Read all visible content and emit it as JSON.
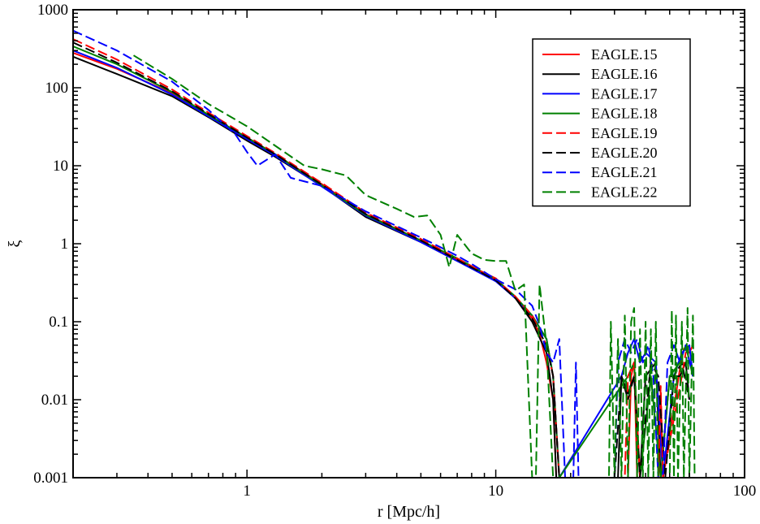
{
  "chart_data": {
    "type": "line",
    "title": "",
    "xlabel": "r [Mpc/h]",
    "ylabel": "ξ",
    "xscale": "log",
    "yscale": "log",
    "xlim": [
      0.2,
      100
    ],
    "ylim": [
      0.001,
      1000
    ],
    "x_ticks": [
      {
        "value": 1,
        "label": "1"
      },
      {
        "value": 10,
        "label": "10"
      },
      {
        "value": 100,
        "label": "100"
      }
    ],
    "y_ticks": [
      {
        "value": 0.001,
        "label": "0.001"
      },
      {
        "value": 0.01,
        "label": "0.01"
      },
      {
        "value": 0.1,
        "label": "0.1"
      },
      {
        "value": 1,
        "label": "1"
      },
      {
        "value": 10,
        "label": "10"
      },
      {
        "value": 100,
        "label": "100"
      },
      {
        "value": 1000,
        "label": "1000"
      }
    ],
    "grid": false,
    "legend_position": "top-right",
    "series": [
      {
        "name": "EAGLE.15",
        "color": "#ff0000",
        "dash": "solid",
        "points": [
          [
            0.2,
            280
          ],
          [
            0.3,
            175
          ],
          [
            0.5,
            85
          ],
          [
            0.7,
            44
          ],
          [
            1.0,
            23
          ],
          [
            1.3,
            14
          ],
          [
            2.0,
            5.8
          ],
          [
            3.0,
            2.4
          ],
          [
            5.0,
            1.1
          ],
          [
            7.0,
            0.62
          ],
          [
            10.0,
            0.36
          ],
          [
            12.0,
            0.2
          ],
          [
            14.0,
            0.11
          ],
          [
            15.0,
            0.07
          ],
          [
            16.0,
            0.03
          ],
          [
            17.0,
            0.01
          ],
          [
            17.5,
            0.001
          ],
          [
            34.0,
            0.001
          ],
          [
            35.0,
            0.02
          ],
          [
            36.0,
            0.03
          ],
          [
            37.0,
            0.001
          ],
          [
            45.0,
            0.001
          ],
          [
            46.0,
            0.012
          ],
          [
            47.0,
            0.001
          ],
          [
            55.0,
            0.025
          ],
          [
            57.0,
            0.045
          ],
          [
            60.0,
            0.04
          ],
          [
            62.0,
            0.05
          ]
        ]
      },
      {
        "name": "EAGLE.16",
        "color": "#000000",
        "dash": "solid",
        "points": [
          [
            0.2,
            250
          ],
          [
            0.3,
            150
          ],
          [
            0.5,
            78
          ],
          [
            0.7,
            42
          ],
          [
            1.0,
            21
          ],
          [
            1.3,
            13
          ],
          [
            2.0,
            5.5
          ],
          [
            3.0,
            2.2
          ],
          [
            5.0,
            1.05
          ],
          [
            7.0,
            0.6
          ],
          [
            10.0,
            0.34
          ],
          [
            12.0,
            0.2
          ],
          [
            14.0,
            0.1
          ],
          [
            16.0,
            0.04
          ],
          [
            17.0,
            0.01
          ],
          [
            17.5,
            0.001
          ],
          [
            31.0,
            0.001
          ],
          [
            32.0,
            0.02
          ],
          [
            34.0,
            0.012
          ],
          [
            36.0,
            0.02
          ],
          [
            38.0,
            0.001
          ],
          [
            40.0,
            0.02
          ],
          [
            44.0,
            0.03
          ],
          [
            46.0,
            0.001
          ],
          [
            50.0,
            0.02
          ],
          [
            55.0,
            0.02
          ],
          [
            58.0,
            0.03
          ],
          [
            60.0,
            0.01
          ]
        ]
      },
      {
        "name": "EAGLE.17",
        "color": "#0000ff",
        "dash": "solid",
        "points": [
          [
            0.2,
            300
          ],
          [
            0.3,
            180
          ],
          [
            0.5,
            82
          ],
          [
            0.7,
            43
          ],
          [
            1.0,
            22
          ],
          [
            1.3,
            13.5
          ],
          [
            2.0,
            5.4
          ],
          [
            3.0,
            2.3
          ],
          [
            5.0,
            1.05
          ],
          [
            7.0,
            0.6
          ],
          [
            10.0,
            0.33
          ],
          [
            12.0,
            0.2
          ],
          [
            14.0,
            0.12
          ],
          [
            16.0,
            0.06
          ],
          [
            17.0,
            0.02
          ],
          [
            18.0,
            0.001
          ],
          [
            32.0,
            0.02
          ],
          [
            34.0,
            0.04
          ],
          [
            36.0,
            0.06
          ],
          [
            38.0,
            0.03
          ],
          [
            40.0,
            0.04
          ],
          [
            44.0,
            0.03
          ],
          [
            47.0,
            0.001
          ],
          [
            52.0,
            0.02
          ],
          [
            56.0,
            0.04
          ],
          [
            60.0,
            0.05
          ],
          [
            62.0,
            0.02
          ]
        ]
      },
      {
        "name": "EAGLE.18",
        "color": "#008000",
        "dash": "solid",
        "points": [
          [
            0.2,
            340
          ],
          [
            0.3,
            200
          ],
          [
            0.5,
            88
          ],
          [
            0.7,
            45
          ],
          [
            1.0,
            23
          ],
          [
            1.3,
            14
          ],
          [
            2.0,
            5.6
          ],
          [
            3.0,
            2.35
          ],
          [
            5.0,
            1.1
          ],
          [
            7.0,
            0.65
          ],
          [
            10.0,
            0.35
          ],
          [
            12.0,
            0.21
          ],
          [
            14.0,
            0.12
          ],
          [
            16.0,
            0.06
          ],
          [
            17.0,
            0.02
          ],
          [
            18.0,
            0.001
          ],
          [
            34.0,
            0.02
          ],
          [
            36.0,
            0.03
          ],
          [
            38.0,
            0.001
          ],
          [
            42.0,
            0.02
          ],
          [
            46.0,
            0.001
          ],
          [
            50.0,
            0.02
          ],
          [
            55.0,
            0.03
          ],
          [
            58.0,
            0.05
          ],
          [
            62.0,
            0.02
          ]
        ]
      },
      {
        "name": "EAGLE.19",
        "color": "#ff0000",
        "dash": "dashed",
        "points": [
          [
            0.2,
            420
          ],
          [
            0.3,
            230
          ],
          [
            0.5,
            95
          ],
          [
            0.7,
            48
          ],
          [
            1.0,
            24
          ],
          [
            1.3,
            14.5
          ],
          [
            2.0,
            6.0
          ],
          [
            3.0,
            2.5
          ],
          [
            5.0,
            1.15
          ],
          [
            7.0,
            0.65
          ],
          [
            10.0,
            0.35
          ],
          [
            12.0,
            0.21
          ],
          [
            14.0,
            0.12
          ],
          [
            16.0,
            0.05
          ],
          [
            17.0,
            0.02
          ],
          [
            18.0,
            0.001
          ],
          [
            33.0,
            0.001
          ],
          [
            34.0,
            0.02
          ],
          [
            36.0,
            0.03
          ],
          [
            38.0,
            0.001
          ],
          [
            45.0,
            0.001
          ],
          [
            46.0,
            0.015
          ],
          [
            47.0,
            0.001
          ],
          [
            56.0,
            0.02
          ],
          [
            58.0,
            0.04
          ],
          [
            62.0,
            0.05
          ]
        ]
      },
      {
        "name": "EAGLE.20",
        "color": "#000000",
        "dash": "dashed",
        "points": [
          [
            0.2,
            380
          ],
          [
            0.3,
            210
          ],
          [
            0.5,
            90
          ],
          [
            0.7,
            46
          ],
          [
            1.0,
            23
          ],
          [
            1.3,
            14
          ],
          [
            2.0,
            5.7
          ],
          [
            3.0,
            2.4
          ],
          [
            5.0,
            1.1
          ],
          [
            7.0,
            0.62
          ],
          [
            10.0,
            0.34
          ],
          [
            12.0,
            0.2
          ],
          [
            14.0,
            0.11
          ],
          [
            16.0,
            0.05
          ],
          [
            17.0,
            0.02
          ],
          [
            18.0,
            0.001
          ],
          [
            30.0,
            0.001
          ],
          [
            32.0,
            0.02
          ],
          [
            34.0,
            0.01
          ],
          [
            36.0,
            0.02
          ],
          [
            38.0,
            0.001
          ],
          [
            42.0,
            0.03
          ],
          [
            45.0,
            0.02
          ],
          [
            48.0,
            0.001
          ],
          [
            52.0,
            0.02
          ],
          [
            56.0,
            0.03
          ],
          [
            60.0,
            0.01
          ]
        ]
      },
      {
        "name": "EAGLE.21",
        "color": "#0000ff",
        "dash": "dashed",
        "points": [
          [
            0.2,
            540
          ],
          [
            0.3,
            300
          ],
          [
            0.5,
            120
          ],
          [
            0.7,
            52
          ],
          [
            0.9,
            25
          ],
          [
            1.0,
            15
          ],
          [
            1.1,
            10
          ],
          [
            1.3,
            14
          ],
          [
            1.5,
            7
          ],
          [
            2.0,
            5.5
          ],
          [
            3.0,
            2.6
          ],
          [
            5.0,
            1.2
          ],
          [
            6.0,
            0.9
          ],
          [
            7.0,
            0.7
          ],
          [
            8.0,
            0.55
          ],
          [
            10.0,
            0.35
          ],
          [
            12.0,
            0.26
          ],
          [
            14.0,
            0.16
          ],
          [
            15.0,
            0.09
          ],
          [
            16.0,
            0.04
          ],
          [
            17.0,
            0.03
          ],
          [
            18.0,
            0.06
          ],
          [
            19.0,
            0.001
          ],
          [
            20.5,
            0.001
          ],
          [
            21.0,
            0.03
          ],
          [
            21.5,
            0.001
          ],
          [
            30.0,
            0.001
          ],
          [
            31.0,
            0.03
          ],
          [
            33.0,
            0.06
          ],
          [
            35.0,
            0.04
          ],
          [
            37.0,
            0.06
          ],
          [
            39.0,
            0.03
          ],
          [
            41.0,
            0.05
          ],
          [
            43.0,
            0.02
          ],
          [
            45.0,
            0.001
          ],
          [
            47.0,
            0.001
          ],
          [
            49.0,
            0.03
          ],
          [
            52.0,
            0.05
          ],
          [
            55.0,
            0.03
          ],
          [
            58.0,
            0.05
          ],
          [
            62.0,
            0.02
          ]
        ]
      },
      {
        "name": "EAGLE.22",
        "color": "#008000",
        "dash": "dashed",
        "points": [
          [
            0.35,
            260
          ],
          [
            0.5,
            130
          ],
          [
            0.7,
            62
          ],
          [
            1.0,
            32
          ],
          [
            1.3,
            18
          ],
          [
            1.7,
            10
          ],
          [
            2.0,
            9
          ],
          [
            2.5,
            7.5
          ],
          [
            3.0,
            4.2
          ],
          [
            4.0,
            2.8
          ],
          [
            4.7,
            2.2
          ],
          [
            5.3,
            2.3
          ],
          [
            6.0,
            1.3
          ],
          [
            6.5,
            0.5
          ],
          [
            7.0,
            1.3
          ],
          [
            8.0,
            0.75
          ],
          [
            9.0,
            0.62
          ],
          [
            10.0,
            0.6
          ],
          [
            11.0,
            0.6
          ],
          [
            12.0,
            0.25
          ],
          [
            13.0,
            0.3
          ],
          [
            14.0,
            0.001
          ],
          [
            14.5,
            0.001
          ],
          [
            15.0,
            0.3
          ],
          [
            16.0,
            0.05
          ],
          [
            17.0,
            0.001
          ],
          [
            28.5,
            0.001
          ],
          [
            29.0,
            0.1
          ],
          [
            30.0,
            0.001
          ],
          [
            31.0,
            0.06
          ],
          [
            32.0,
            0.001
          ],
          [
            33.0,
            0.12
          ],
          [
            34.0,
            0.001
          ],
          [
            35.0,
            0.1
          ],
          [
            36.0,
            0.15
          ],
          [
            37.0,
            0.001
          ],
          [
            38.0,
            0.08
          ],
          [
            39.0,
            0.001
          ],
          [
            40.0,
            0.1
          ],
          [
            41.0,
            0.001
          ],
          [
            42.0,
            0.08
          ],
          [
            43.0,
            0.001
          ],
          [
            44.0,
            0.1
          ],
          [
            45.0,
            0.001
          ],
          [
            50.0,
            0.001
          ],
          [
            51.0,
            0.14
          ],
          [
            52.0,
            0.001
          ],
          [
            53.0,
            0.12
          ],
          [
            54.0,
            0.001
          ],
          [
            56.0,
            0.1
          ],
          [
            57.0,
            0.001
          ],
          [
            59.0,
            0.15
          ],
          [
            60.0,
            0.001
          ],
          [
            62.0,
            0.12
          ],
          [
            63.0,
            0.001
          ]
        ]
      }
    ]
  }
}
